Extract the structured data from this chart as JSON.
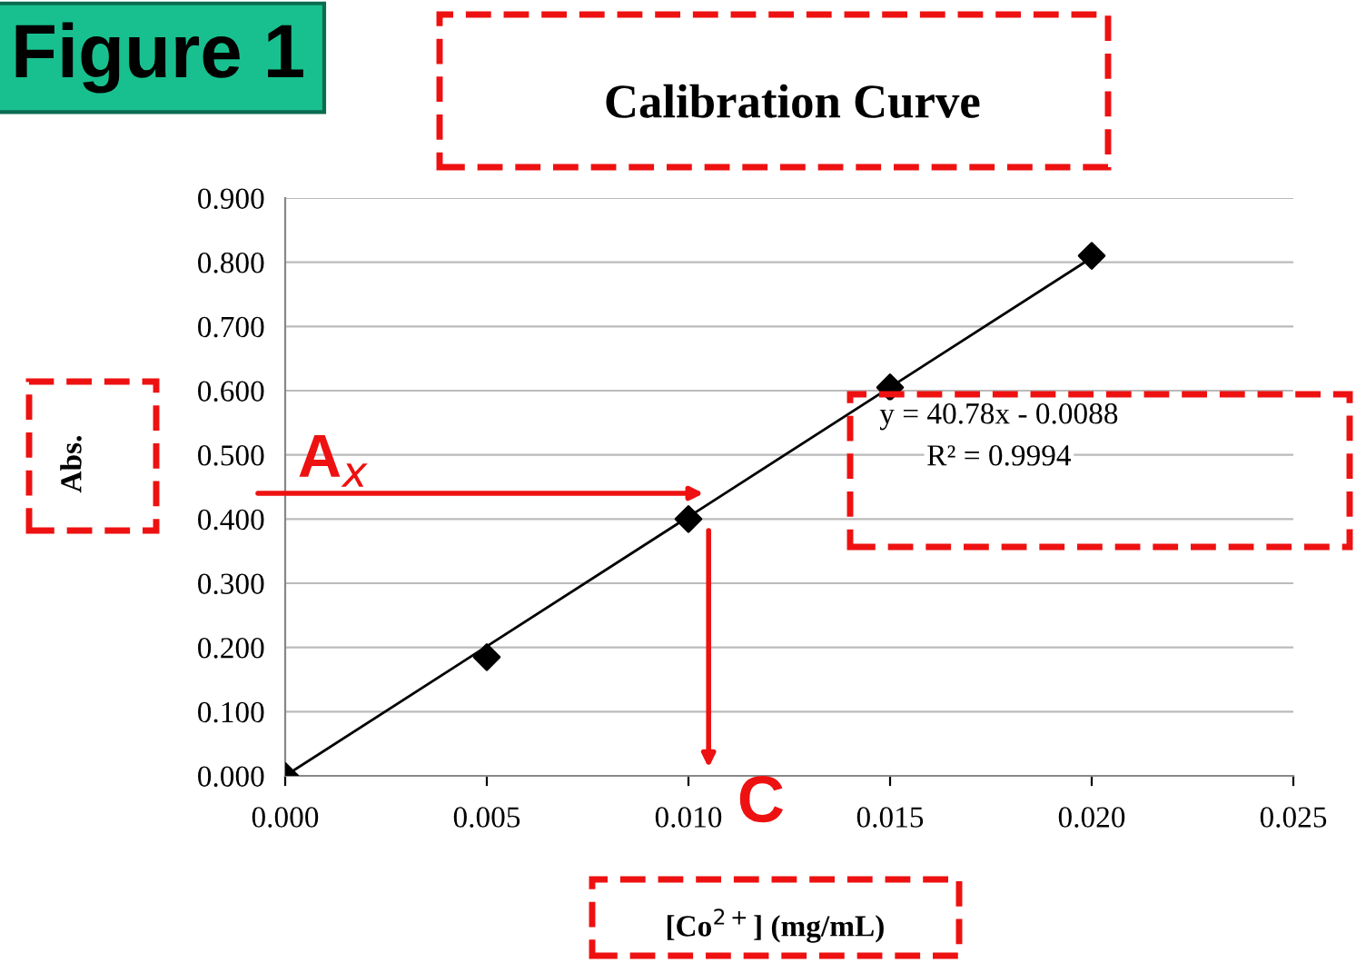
{
  "chart_data": {
    "type": "scatter",
    "title": "Calibration Curve",
    "xlabel": "[Co$^{2+}$] (mg/mL)",
    "ylabel": "Abs.",
    "series": [
      {
        "color": "#000000",
        "x": [
          0.0,
          0.005,
          0.01,
          0.015,
          0.02
        ],
        "values": [
          0.0,
          0.185,
          0.4,
          0.605,
          0.81
        ],
        "marker": "diamond"
      },
      {
        "type": "line",
        "color": "#000000",
        "x": [
          0.0,
          0.02
        ],
        "values": [
          0.0,
          0.807
        ]
      }
    ],
    "xlim": [
      0,
      0.025
    ],
    "ylim": [
      0,
      0.9
    ],
    "xticks": [
      {
        "value": 0,
        "label": "0.000"
      },
      {
        "value": 0.005,
        "label": "0.005"
      },
      {
        "value": 0.01,
        "label": "0.010"
      },
      {
        "value": 0.015,
        "label": "0.015"
      },
      {
        "value": 0.02,
        "label": "0.020"
      },
      {
        "value": 0.025,
        "label": "0.025"
      }
    ],
    "yticks": [
      {
        "value": 0,
        "label": "0.000"
      },
      {
        "value": 0.1,
        "label": "0.100"
      },
      {
        "value": 0.2,
        "label": "0.200"
      },
      {
        "value": 0.3,
        "label": "0.300"
      },
      {
        "value": 0.4,
        "label": "0.400"
      },
      {
        "value": 0.5,
        "label": "0.500"
      },
      {
        "value": 0.6,
        "label": "0.600"
      },
      {
        "value": 0.7,
        "label": "0.700"
      },
      {
        "value": 0.8,
        "label": "0.800"
      },
      {
        "value": 0.9,
        "label": "0.900"
      }
    ],
    "grid": "y",
    "annotations": [
      "Figure 1",
      "y = 40.78x - 0.0088",
      "R² = 0.9994",
      "A$_{x}$",
      "C"
    ]
  }
}
